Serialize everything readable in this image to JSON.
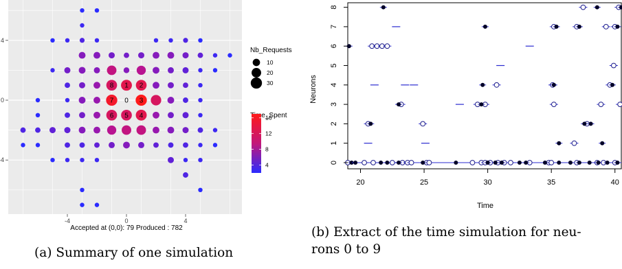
{
  "panel_a": {
    "caption": "(a) Summary of one simulation",
    "xlabel": "Accepted at (0,0): 79  Produced : 782",
    "x_ticks": [
      -4,
      0,
      4
    ],
    "y_ticks": [
      4,
      0,
      -4
    ],
    "legend_size_title": "Nb_Requests",
    "legend_size_items": [
      "10",
      "20",
      "30"
    ],
    "legend_color_title": "Time_Spent",
    "legend_color_items": [
      "16",
      "12",
      "8",
      "4"
    ],
    "center_label": "0",
    "node_labels": [
      {
        "x": -1,
        "y": 1,
        "label": "8"
      },
      {
        "x": 0,
        "y": 1,
        "label": "1"
      },
      {
        "x": 1,
        "y": 1,
        "label": "2"
      },
      {
        "x": -1,
        "y": 0,
        "label": "7"
      },
      {
        "x": 1,
        "y": 0,
        "label": "3"
      },
      {
        "x": -1,
        "y": -1,
        "label": "6"
      },
      {
        "x": 0,
        "y": -1,
        "label": "5"
      },
      {
        "x": 1,
        "y": -1,
        "label": "4"
      }
    ]
  },
  "panel_b": {
    "caption_line1": "(b) Extract of the time simulation for neu-",
    "caption_line2": "rons 0 to 9",
    "xlabel": "Time",
    "ylabel": "Neurons",
    "x_ticks": [
      20,
      25,
      30,
      35,
      40
    ],
    "y_ticks": [
      0,
      1,
      2,
      3,
      4,
      5,
      6,
      7,
      8
    ]
  },
  "colors": {
    "low": "#2b2bff",
    "high": "#ff1a1a",
    "panel_bg": "#ebebeb",
    "line": "#2a2ad0"
  },
  "chart_data": [
    {
      "type": "scatter",
      "title": "",
      "xlabel": "Accepted at (0,0): 79  Produced : 782",
      "ylabel": "",
      "xlim": [
        -7,
        7
      ],
      "ylim": [
        -7,
        6
      ],
      "grid": true,
      "legend": "right",
      "points": [
        {
          "x": -3,
          "y": 6,
          "n": 2,
          "t": 2
        },
        {
          "x": -2,
          "y": 6,
          "n": 2,
          "t": 2
        },
        {
          "x": -3,
          "y": 5,
          "n": 2,
          "t": 3
        },
        {
          "x": -5,
          "y": 4,
          "n": 2,
          "t": 2
        },
        {
          "x": -4,
          "y": 4,
          "n": 2,
          "t": 3
        },
        {
          "x": -3,
          "y": 4,
          "n": 3,
          "t": 4
        },
        {
          "x": -2,
          "y": 4,
          "n": 2,
          "t": 3
        },
        {
          "x": 2,
          "y": 4,
          "n": 2,
          "t": 3
        },
        {
          "x": 3,
          "y": 4,
          "n": 2,
          "t": 3
        },
        {
          "x": 4,
          "y": 4,
          "n": 3,
          "t": 4
        },
        {
          "x": 5,
          "y": 4,
          "n": 2,
          "t": 2
        },
        {
          "x": -3,
          "y": 3,
          "n": 8,
          "t": 7
        },
        {
          "x": -2,
          "y": 3,
          "n": 8,
          "t": 7
        },
        {
          "x": -1,
          "y": 3,
          "n": 6,
          "t": 6
        },
        {
          "x": 0,
          "y": 3,
          "n": 4,
          "t": 6
        },
        {
          "x": 1,
          "y": 3,
          "n": 6,
          "t": 6
        },
        {
          "x": 2,
          "y": 3,
          "n": 8,
          "t": 7
        },
        {
          "x": 3,
          "y": 3,
          "n": 8,
          "t": 7
        },
        {
          "x": 4,
          "y": 3,
          "n": 6,
          "t": 6
        },
        {
          "x": 5,
          "y": 3,
          "n": 4,
          "t": 5
        },
        {
          "x": 6,
          "y": 3,
          "n": 2,
          "t": 3
        },
        {
          "x": 7,
          "y": 3,
          "n": 2,
          "t": 2
        },
        {
          "x": -5,
          "y": 2,
          "n": 2,
          "t": 3
        },
        {
          "x": -4,
          "y": 2,
          "n": 6,
          "t": 6
        },
        {
          "x": -3,
          "y": 2,
          "n": 8,
          "t": 7
        },
        {
          "x": -2,
          "y": 2,
          "n": 6,
          "t": 7
        },
        {
          "x": -1,
          "y": 2,
          "n": 20,
          "t": 11
        },
        {
          "x": 0,
          "y": 2,
          "n": 5,
          "t": 7
        },
        {
          "x": 1,
          "y": 2,
          "n": 18,
          "t": 10
        },
        {
          "x": 2,
          "y": 2,
          "n": 8,
          "t": 7
        },
        {
          "x": 3,
          "y": 2,
          "n": 6,
          "t": 6
        },
        {
          "x": 4,
          "y": 2,
          "n": 6,
          "t": 5
        },
        {
          "x": 5,
          "y": 2,
          "n": 2,
          "t": 3
        },
        {
          "x": 6,
          "y": 2,
          "n": 2,
          "t": 2
        },
        {
          "x": -4,
          "y": 1,
          "n": 4,
          "t": 4
        },
        {
          "x": -3,
          "y": 1,
          "n": 6,
          "t": 6
        },
        {
          "x": -2,
          "y": 1,
          "n": 8,
          "t": 8
        },
        {
          "x": -1,
          "y": 1,
          "n": 27,
          "t": 13
        },
        {
          "x": 0,
          "y": 1,
          "n": 28,
          "t": 14
        },
        {
          "x": 1,
          "y": 1,
          "n": 27,
          "t": 14
        },
        {
          "x": 2,
          "y": 1,
          "n": 8,
          "t": 7
        },
        {
          "x": 3,
          "y": 1,
          "n": 6,
          "t": 6
        },
        {
          "x": 4,
          "y": 1,
          "n": 4,
          "t": 5
        },
        {
          "x": 5,
          "y": 1,
          "n": 2,
          "t": 3
        },
        {
          "x": -6,
          "y": 0,
          "n": 2,
          "t": 2
        },
        {
          "x": -4,
          "y": 0,
          "n": 2,
          "t": 3
        },
        {
          "x": -3,
          "y": 0,
          "n": 8,
          "t": 7
        },
        {
          "x": -2,
          "y": 0,
          "n": 8,
          "t": 8
        },
        {
          "x": -1,
          "y": 0,
          "n": 30,
          "t": 16
        },
        {
          "x": 0,
          "y": 0,
          "n": 0,
          "t": 0
        },
        {
          "x": 1,
          "y": 0,
          "n": 30,
          "t": 17
        },
        {
          "x": 2,
          "y": 0,
          "n": 25,
          "t": 13
        },
        {
          "x": 3,
          "y": 0,
          "n": 8,
          "t": 7
        },
        {
          "x": 4,
          "y": 0,
          "n": 4,
          "t": 4
        },
        {
          "x": 5,
          "y": 0,
          "n": 2,
          "t": 3
        },
        {
          "x": -6,
          "y": -1,
          "n": 2,
          "t": 2
        },
        {
          "x": -4,
          "y": -1,
          "n": 4,
          "t": 4
        },
        {
          "x": -3,
          "y": -1,
          "n": 6,
          "t": 6
        },
        {
          "x": -2,
          "y": -1,
          "n": 8,
          "t": 8
        },
        {
          "x": -1,
          "y": -1,
          "n": 27,
          "t": 13
        },
        {
          "x": 0,
          "y": -1,
          "n": 27,
          "t": 13
        },
        {
          "x": 1,
          "y": -1,
          "n": 28,
          "t": 14
        },
        {
          "x": 2,
          "y": -1,
          "n": 8,
          "t": 8
        },
        {
          "x": 3,
          "y": -1,
          "n": 6,
          "t": 6
        },
        {
          "x": 4,
          "y": -1,
          "n": 6,
          "t": 5
        },
        {
          "x": 5,
          "y": -1,
          "n": 2,
          "t": 3
        },
        {
          "x": -7,
          "y": -2,
          "n": 4,
          "t": 4
        },
        {
          "x": -6,
          "y": -2,
          "n": 4,
          "t": 4
        },
        {
          "x": -5,
          "y": -2,
          "n": 6,
          "t": 5
        },
        {
          "x": -4,
          "y": -2,
          "n": 6,
          "t": 5
        },
        {
          "x": -3,
          "y": -2,
          "n": 8,
          "t": 7
        },
        {
          "x": -2,
          "y": -2,
          "n": 8,
          "t": 8
        },
        {
          "x": -1,
          "y": -2,
          "n": 18,
          "t": 10
        },
        {
          "x": 0,
          "y": -2,
          "n": 20,
          "t": 11
        },
        {
          "x": 1,
          "y": -2,
          "n": 20,
          "t": 11
        },
        {
          "x": 2,
          "y": -2,
          "n": 8,
          "t": 8
        },
        {
          "x": 3,
          "y": -2,
          "n": 8,
          "t": 7
        },
        {
          "x": 4,
          "y": -2,
          "n": 6,
          "t": 6
        },
        {
          "x": 5,
          "y": -2,
          "n": 4,
          "t": 4
        },
        {
          "x": 6,
          "y": -2,
          "n": 2,
          "t": 3
        },
        {
          "x": -7,
          "y": -3,
          "n": 2,
          "t": 2
        },
        {
          "x": -6,
          "y": -3,
          "n": 2,
          "t": 2
        },
        {
          "x": -4,
          "y": -3,
          "n": 4,
          "t": 4
        },
        {
          "x": -3,
          "y": -3,
          "n": 4,
          "t": 4
        },
        {
          "x": -2,
          "y": -3,
          "n": 4,
          "t": 5
        },
        {
          "x": -1,
          "y": -3,
          "n": 6,
          "t": 6
        },
        {
          "x": 0,
          "y": -3,
          "n": 8,
          "t": 7
        },
        {
          "x": 1,
          "y": -3,
          "n": 6,
          "t": 6
        },
        {
          "x": 2,
          "y": -3,
          "n": 4,
          "t": 5
        },
        {
          "x": 3,
          "y": -3,
          "n": 4,
          "t": 4
        },
        {
          "x": 4,
          "y": -3,
          "n": 4,
          "t": 4
        },
        {
          "x": 5,
          "y": -3,
          "n": 2,
          "t": 3
        },
        {
          "x": 6,
          "y": -3,
          "n": 2,
          "t": 2
        },
        {
          "x": -5,
          "y": -4,
          "n": 2,
          "t": 2
        },
        {
          "x": -4,
          "y": -4,
          "n": 2,
          "t": 3
        },
        {
          "x": -3,
          "y": -4,
          "n": 2,
          "t": 3
        },
        {
          "x": -2,
          "y": -4,
          "n": 2,
          "t": 3
        },
        {
          "x": 3,
          "y": -4,
          "n": 6,
          "t": 5
        },
        {
          "x": 4,
          "y": -4,
          "n": 2,
          "t": 3
        },
        {
          "x": 5,
          "y": -4,
          "n": 2,
          "t": 3
        },
        {
          "x": 4,
          "y": -5,
          "n": 4,
          "t": 4
        },
        {
          "x": -3,
          "y": -6,
          "n": 2,
          "t": 2
        },
        {
          "x": 5,
          "y": -6,
          "n": 2,
          "t": 2
        },
        {
          "x": -3,
          "y": -7,
          "n": 2,
          "t": 2
        },
        {
          "x": -2,
          "y": -7,
          "n": 2,
          "t": 2
        }
      ]
    },
    {
      "type": "scatter",
      "title": "",
      "xlabel": "Time",
      "ylabel": "Neurons",
      "xlim": [
        19,
        40.5
      ],
      "ylim": [
        -0.2,
        8.3
      ],
      "grid": false,
      "baseline": [
        19,
        40.5
      ],
      "filled": [
        [
          19.3,
          0
        ],
        [
          19.6,
          0
        ],
        [
          21.6,
          0
        ],
        [
          22.1,
          0
        ],
        [
          23.0,
          0
        ],
        [
          24.9,
          0
        ],
        [
          27.5,
          0
        ],
        [
          30.0,
          0
        ],
        [
          30.6,
          0
        ],
        [
          31.1,
          0
        ],
        [
          32.5,
          0
        ],
        [
          33.0,
          0
        ],
        [
          34.5,
          0
        ],
        [
          35.6,
          0
        ],
        [
          36.5,
          0
        ],
        [
          37.2,
          0
        ],
        [
          38.0,
          0
        ],
        [
          38.7,
          0
        ],
        [
          39.4,
          0
        ],
        [
          40.2,
          0
        ],
        [
          35.6,
          1
        ],
        [
          39.0,
          1
        ],
        [
          20.8,
          2
        ],
        [
          37.6,
          2
        ],
        [
          38.1,
          2
        ],
        [
          23.0,
          3
        ],
        [
          29.5,
          3
        ],
        [
          29.6,
          4
        ],
        [
          35.2,
          4
        ],
        [
          39.8,
          4
        ],
        [
          19.1,
          6
        ],
        [
          29.8,
          7
        ],
        [
          35.4,
          7
        ],
        [
          37.2,
          7
        ],
        [
          40.2,
          7
        ],
        [
          21.8,
          8
        ],
        [
          38.6,
          8
        ],
        [
          40.5,
          8
        ]
      ],
      "open": [
        [
          19.0,
          0
        ],
        [
          20.3,
          0
        ],
        [
          21.0,
          0
        ],
        [
          22.5,
          0
        ],
        [
          23.3,
          0
        ],
        [
          23.7,
          0
        ],
        [
          24.0,
          0
        ],
        [
          25.2,
          0
        ],
        [
          25.4,
          0
        ],
        [
          28.8,
          0
        ],
        [
          29.5,
          0
        ],
        [
          29.8,
          0
        ],
        [
          30.2,
          0
        ],
        [
          30.8,
          0
        ],
        [
          31.3,
          0
        ],
        [
          31.8,
          0
        ],
        [
          33.3,
          0
        ],
        [
          34.8,
          0
        ],
        [
          35.0,
          0
        ],
        [
          37.0,
          0
        ],
        [
          38.6,
          0
        ],
        [
          39.1,
          0
        ],
        [
          40.0,
          0
        ],
        [
          36.8,
          1
        ],
        [
          20.6,
          2
        ],
        [
          24.9,
          2
        ],
        [
          37.8,
          2
        ],
        [
          23.2,
          3
        ],
        [
          29.2,
          3
        ],
        [
          29.8,
          3
        ],
        [
          35.2,
          3
        ],
        [
          38.9,
          3
        ],
        [
          40.4,
          3
        ],
        [
          30.7,
          4
        ],
        [
          35.1,
          4
        ],
        [
          39.6,
          4
        ],
        [
          39.9,
          5
        ],
        [
          20.9,
          6
        ],
        [
          21.3,
          6
        ],
        [
          21.7,
          6
        ],
        [
          22.1,
          6
        ],
        [
          35.2,
          7
        ],
        [
          37.0,
          7
        ],
        [
          39.3,
          7
        ],
        [
          40.0,
          7
        ],
        [
          37.5,
          8
        ],
        [
          40.3,
          8
        ]
      ],
      "dashes": [
        [
          22.6,
          0.0
        ],
        [
          20.6,
          1.0
        ],
        [
          25.1,
          1.0
        ],
        [
          23.5,
          4.0
        ],
        [
          24.2,
          4.0
        ],
        [
          21.1,
          4.0
        ],
        [
          27.8,
          3.0
        ],
        [
          31.0,
          5.0
        ],
        [
          33.3,
          6.0
        ],
        [
          22.8,
          7.0
        ]
      ]
    }
  ]
}
